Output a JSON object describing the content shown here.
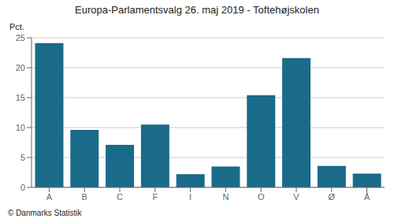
{
  "chart_data": {
    "type": "bar",
    "title": "Europa-Parlamentsvalg 26. maj 2019 - Toftehøjskolen",
    "ylabel": "Pct.",
    "annotations": [
      "© Danmarks Statistik"
    ],
    "categories": [
      "A",
      "B",
      "C",
      "F",
      "I",
      "N",
      "O",
      "V",
      "Ø",
      "Å"
    ],
    "values": [
      24.1,
      9.6,
      7.1,
      10.5,
      2.2,
      3.5,
      15.4,
      21.6,
      3.6,
      2.3
    ],
    "color": "#1a6b8a",
    "ylim": [
      0,
      25
    ],
    "yticks": [
      0,
      5,
      10,
      15,
      20,
      25
    ],
    "grid": true
  }
}
